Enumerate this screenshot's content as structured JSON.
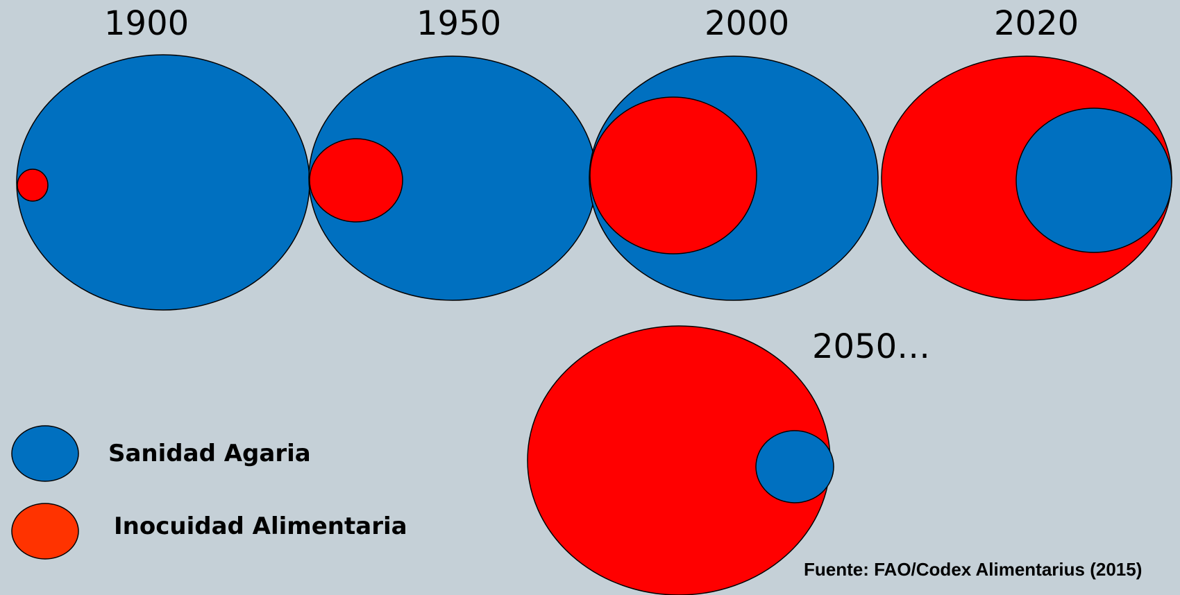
{
  "diagram": {
    "panels": [
      {
        "year": "1900"
      },
      {
        "year": "1950"
      },
      {
        "year": "2000"
      },
      {
        "year": "2020"
      },
      {
        "year": "2050…"
      }
    ]
  },
  "legend": {
    "items": [
      {
        "label": "Sanidad Agaria",
        "color": "#0070c0"
      },
      {
        "label": "Inocuidad Alimentaria",
        "color": "#ff3300"
      }
    ]
  },
  "source": "Fuente: FAO/Codex Alimentarius (2015)",
  "colors": {
    "background": "#c5d0d7",
    "blue": "#0070c0",
    "red": "#ff0000"
  }
}
